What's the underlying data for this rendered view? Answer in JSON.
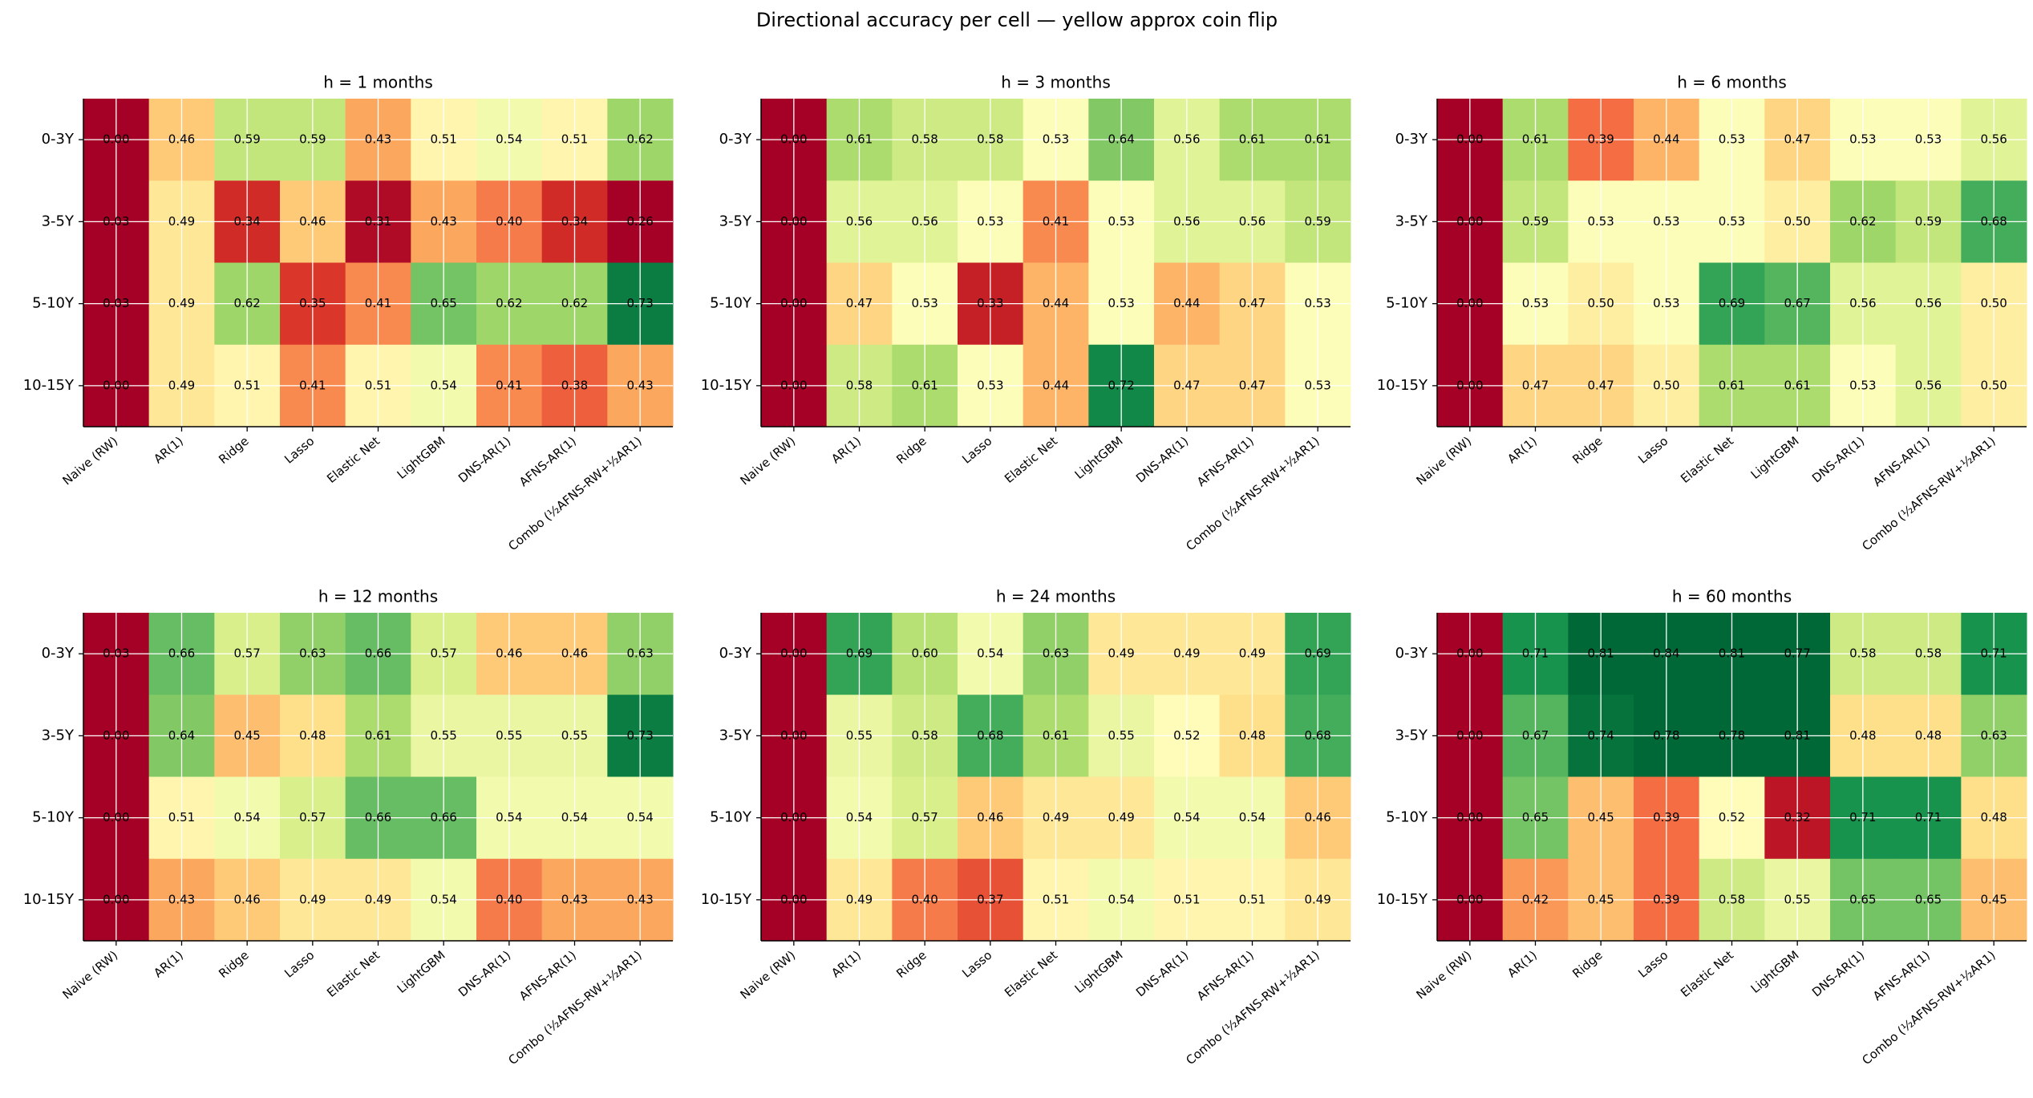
{
  "figure": {
    "title": "Directional accuracy per cell — yellow approx coin flip"
  },
  "chart_data": [
    {
      "type": "heatmap",
      "title": "h = 1 months",
      "colormap": "RdYlGn",
      "clim": [
        0.3,
        0.75
      ],
      "grid": true,
      "x_categories": [
        "Naive (RW)",
        "AR(1)",
        "Ridge",
        "Lasso",
        "Elastic Net",
        "LightGBM",
        "DNS-AR(1)",
        "AFNS-AR(1)",
        "Combo (½AFNS-RW+½AR1)"
      ],
      "y_categories": [
        "0-3Y",
        "3-5Y",
        "5-10Y",
        "10-15Y"
      ],
      "values": [
        [
          0,
          0.46,
          0.59,
          0.59,
          0.43,
          0.51,
          0.54,
          0.51,
          0.62
        ],
        [
          0.03,
          0.49,
          0.34,
          0.46,
          0.31,
          0.43,
          0.4,
          0.34,
          0.26
        ],
        [
          0.03,
          0.49,
          0.62,
          0.35,
          0.41,
          0.65,
          0.62,
          0.62,
          0.73
        ],
        [
          0,
          0.49,
          0.51,
          0.41,
          0.51,
          0.54,
          0.41,
          0.38,
          0.43
        ]
      ],
      "value_labels": [
        [
          "0.00",
          "0.46",
          "0.59",
          "0.59",
          "0.43",
          "0.51",
          "0.54",
          "0.51",
          "0.62"
        ],
        [
          "0.03",
          "0.49",
          "0.34",
          "0.46",
          "0.31",
          "0.43",
          "0.40",
          "0.34",
          "0.26"
        ],
        [
          "0.03",
          "0.49",
          "0.62",
          "0.35",
          "0.41",
          "0.65",
          "0.62",
          "0.62",
          "0.73"
        ],
        [
          "0.00",
          "0.49",
          "0.51",
          "0.41",
          "0.51",
          "0.54",
          "0.41",
          "0.38",
          "0.43"
        ]
      ]
    },
    {
      "type": "heatmap",
      "title": "h = 3 months",
      "colormap": "RdYlGn",
      "clim": [
        0.3,
        0.75
      ],
      "grid": true,
      "x_categories": [
        "Naive (RW)",
        "AR(1)",
        "Ridge",
        "Lasso",
        "Elastic Net",
        "LightGBM",
        "DNS-AR(1)",
        "AFNS-AR(1)",
        "Combo (½AFNS-RW+½AR1)"
      ],
      "y_categories": [
        "0-3Y",
        "3-5Y",
        "5-10Y",
        "10-15Y"
      ],
      "values": [
        [
          0,
          0.61,
          0.58,
          0.58,
          0.53,
          0.64,
          0.56,
          0.61,
          0.61
        ],
        [
          0,
          0.56,
          0.56,
          0.53,
          0.41,
          0.53,
          0.56,
          0.56,
          0.59
        ],
        [
          0,
          0.47,
          0.53,
          0.33,
          0.44,
          0.53,
          0.44,
          0.47,
          0.53
        ],
        [
          0,
          0.58,
          0.61,
          0.53,
          0.44,
          0.72,
          0.47,
          0.47,
          0.53
        ]
      ],
      "value_labels": [
        [
          "0.00",
          "0.61",
          "0.58",
          "0.58",
          "0.53",
          "0.64",
          "0.56",
          "0.61",
          "0.61"
        ],
        [
          "0.00",
          "0.56",
          "0.56",
          "0.53",
          "0.41",
          "0.53",
          "0.56",
          "0.56",
          "0.59"
        ],
        [
          "0.00",
          "0.47",
          "0.53",
          "0.33",
          "0.44",
          "0.53",
          "0.44",
          "0.47",
          "0.53"
        ],
        [
          "0.00",
          "0.58",
          "0.61",
          "0.53",
          "0.44",
          "0.72",
          "0.47",
          "0.47",
          "0.53"
        ]
      ]
    },
    {
      "type": "heatmap",
      "title": "h = 6 months",
      "colormap": "RdYlGn",
      "clim": [
        0.3,
        0.75
      ],
      "grid": true,
      "x_categories": [
        "Naive (RW)",
        "AR(1)",
        "Ridge",
        "Lasso",
        "Elastic Net",
        "LightGBM",
        "DNS-AR(1)",
        "AFNS-AR(1)",
        "Combo (½AFNS-RW+½AR1)"
      ],
      "y_categories": [
        "0-3Y",
        "3-5Y",
        "5-10Y",
        "10-15Y"
      ],
      "values": [
        [
          0,
          0.61,
          0.39,
          0.44,
          0.53,
          0.47,
          0.53,
          0.53,
          0.56
        ],
        [
          0,
          0.59,
          0.53,
          0.53,
          0.53,
          0.5,
          0.62,
          0.59,
          0.68
        ],
        [
          0,
          0.53,
          0.5,
          0.53,
          0.69,
          0.67,
          0.56,
          0.56,
          0.5
        ],
        [
          0,
          0.47,
          0.47,
          0.5,
          0.61,
          0.61,
          0.53,
          0.56,
          0.5
        ]
      ],
      "value_labels": [
        [
          "0.00",
          "0.61",
          "0.39",
          "0.44",
          "0.53",
          "0.47",
          "0.53",
          "0.53",
          "0.56"
        ],
        [
          "0.00",
          "0.59",
          "0.53",
          "0.53",
          "0.53",
          "0.50",
          "0.62",
          "0.59",
          "0.68"
        ],
        [
          "0.00",
          "0.53",
          "0.50",
          "0.53",
          "0.69",
          "0.67",
          "0.56",
          "0.56",
          "0.50"
        ],
        [
          "0.00",
          "0.47",
          "0.47",
          "0.50",
          "0.61",
          "0.61",
          "0.53",
          "0.56",
          "0.50"
        ]
      ]
    },
    {
      "type": "heatmap",
      "title": "h = 12 months",
      "colormap": "RdYlGn",
      "clim": [
        0.3,
        0.75
      ],
      "grid": true,
      "x_categories": [
        "Naive (RW)",
        "AR(1)",
        "Ridge",
        "Lasso",
        "Elastic Net",
        "LightGBM",
        "DNS-AR(1)",
        "AFNS-AR(1)",
        "Combo (½AFNS-RW+½AR1)"
      ],
      "y_categories": [
        "0-3Y",
        "3-5Y",
        "5-10Y",
        "10-15Y"
      ],
      "values": [
        [
          0.03,
          0.66,
          0.57,
          0.63,
          0.66,
          0.57,
          0.46,
          0.46,
          0.63
        ],
        [
          0,
          0.64,
          0.45,
          0.48,
          0.61,
          0.55,
          0.55,
          0.55,
          0.73
        ],
        [
          0,
          0.51,
          0.54,
          0.57,
          0.66,
          0.66,
          0.54,
          0.54,
          0.54
        ],
        [
          0,
          0.43,
          0.46,
          0.49,
          0.49,
          0.54,
          0.4,
          0.43,
          0.43
        ]
      ],
      "value_labels": [
        [
          "0.03",
          "0.66",
          "0.57",
          "0.63",
          "0.66",
          "0.57",
          "0.46",
          "0.46",
          "0.63"
        ],
        [
          "0.00",
          "0.64",
          "0.45",
          "0.48",
          "0.61",
          "0.55",
          "0.55",
          "0.55",
          "0.73"
        ],
        [
          "0.00",
          "0.51",
          "0.54",
          "0.57",
          "0.66",
          "0.66",
          "0.54",
          "0.54",
          "0.54"
        ],
        [
          "0.00",
          "0.43",
          "0.46",
          "0.49",
          "0.49",
          "0.54",
          "0.40",
          "0.43",
          "0.43"
        ]
      ]
    },
    {
      "type": "heatmap",
      "title": "h = 24 months",
      "colormap": "RdYlGn",
      "clim": [
        0.3,
        0.75
      ],
      "grid": true,
      "x_categories": [
        "Naive (RW)",
        "AR(1)",
        "Ridge",
        "Lasso",
        "Elastic Net",
        "LightGBM",
        "DNS-AR(1)",
        "AFNS-AR(1)",
        "Combo (½AFNS-RW+½AR1)"
      ],
      "y_categories": [
        "0-3Y",
        "3-5Y",
        "5-10Y",
        "10-15Y"
      ],
      "values": [
        [
          0,
          0.69,
          0.6,
          0.54,
          0.63,
          0.49,
          0.49,
          0.49,
          0.69
        ],
        [
          0,
          0.55,
          0.58,
          0.68,
          0.61,
          0.55,
          0.52,
          0.48,
          0.68
        ],
        [
          0,
          0.54,
          0.57,
          0.46,
          0.49,
          0.49,
          0.54,
          0.54,
          0.46
        ],
        [
          0,
          0.49,
          0.4,
          0.37,
          0.51,
          0.54,
          0.51,
          0.51,
          0.49
        ]
      ],
      "value_labels": [
        [
          "0.00",
          "0.69",
          "0.60",
          "0.54",
          "0.63",
          "0.49",
          "0.49",
          "0.49",
          "0.69"
        ],
        [
          "0.00",
          "0.55",
          "0.58",
          "0.68",
          "0.61",
          "0.55",
          "0.52",
          "0.48",
          "0.68"
        ],
        [
          "0.00",
          "0.54",
          "0.57",
          "0.46",
          "0.49",
          "0.49",
          "0.54",
          "0.54",
          "0.46"
        ],
        [
          "0.00",
          "0.49",
          "0.40",
          "0.37",
          "0.51",
          "0.54",
          "0.51",
          "0.51",
          "0.49"
        ]
      ]
    },
    {
      "type": "heatmap",
      "title": "h = 60 months",
      "colormap": "RdYlGn",
      "clim": [
        0.3,
        0.75
      ],
      "grid": true,
      "x_categories": [
        "Naive (RW)",
        "AR(1)",
        "Ridge",
        "Lasso",
        "Elastic Net",
        "LightGBM",
        "DNS-AR(1)",
        "AFNS-AR(1)",
        "Combo (½AFNS-RW+½AR1)"
      ],
      "y_categories": [
        "0-3Y",
        "3-5Y",
        "5-10Y",
        "10-15Y"
      ],
      "values": [
        [
          0,
          0.71,
          0.81,
          0.84,
          0.81,
          0.77,
          0.58,
          0.58,
          0.71
        ],
        [
          0,
          0.67,
          0.74,
          0.78,
          0.78,
          0.81,
          0.48,
          0.48,
          0.63
        ],
        [
          0,
          0.65,
          0.45,
          0.39,
          0.52,
          0.32,
          0.71,
          0.71,
          0.48
        ],
        [
          0,
          0.42,
          0.45,
          0.39,
          0.58,
          0.55,
          0.65,
          0.65,
          0.45
        ]
      ],
      "value_labels": [
        [
          "0.00",
          "0.71",
          "0.81",
          "0.84",
          "0.81",
          "0.77",
          "0.58",
          "0.58",
          "0.71"
        ],
        [
          "0.00",
          "0.67",
          "0.74",
          "0.78",
          "0.78",
          "0.81",
          "0.48",
          "0.48",
          "0.63"
        ],
        [
          "0.00",
          "0.65",
          "0.45",
          "0.39",
          "0.52",
          "0.32",
          "0.71",
          "0.71",
          "0.48"
        ],
        [
          "0.00",
          "0.42",
          "0.45",
          "0.39",
          "0.58",
          "0.55",
          "0.65",
          "0.65",
          "0.45"
        ]
      ]
    }
  ]
}
